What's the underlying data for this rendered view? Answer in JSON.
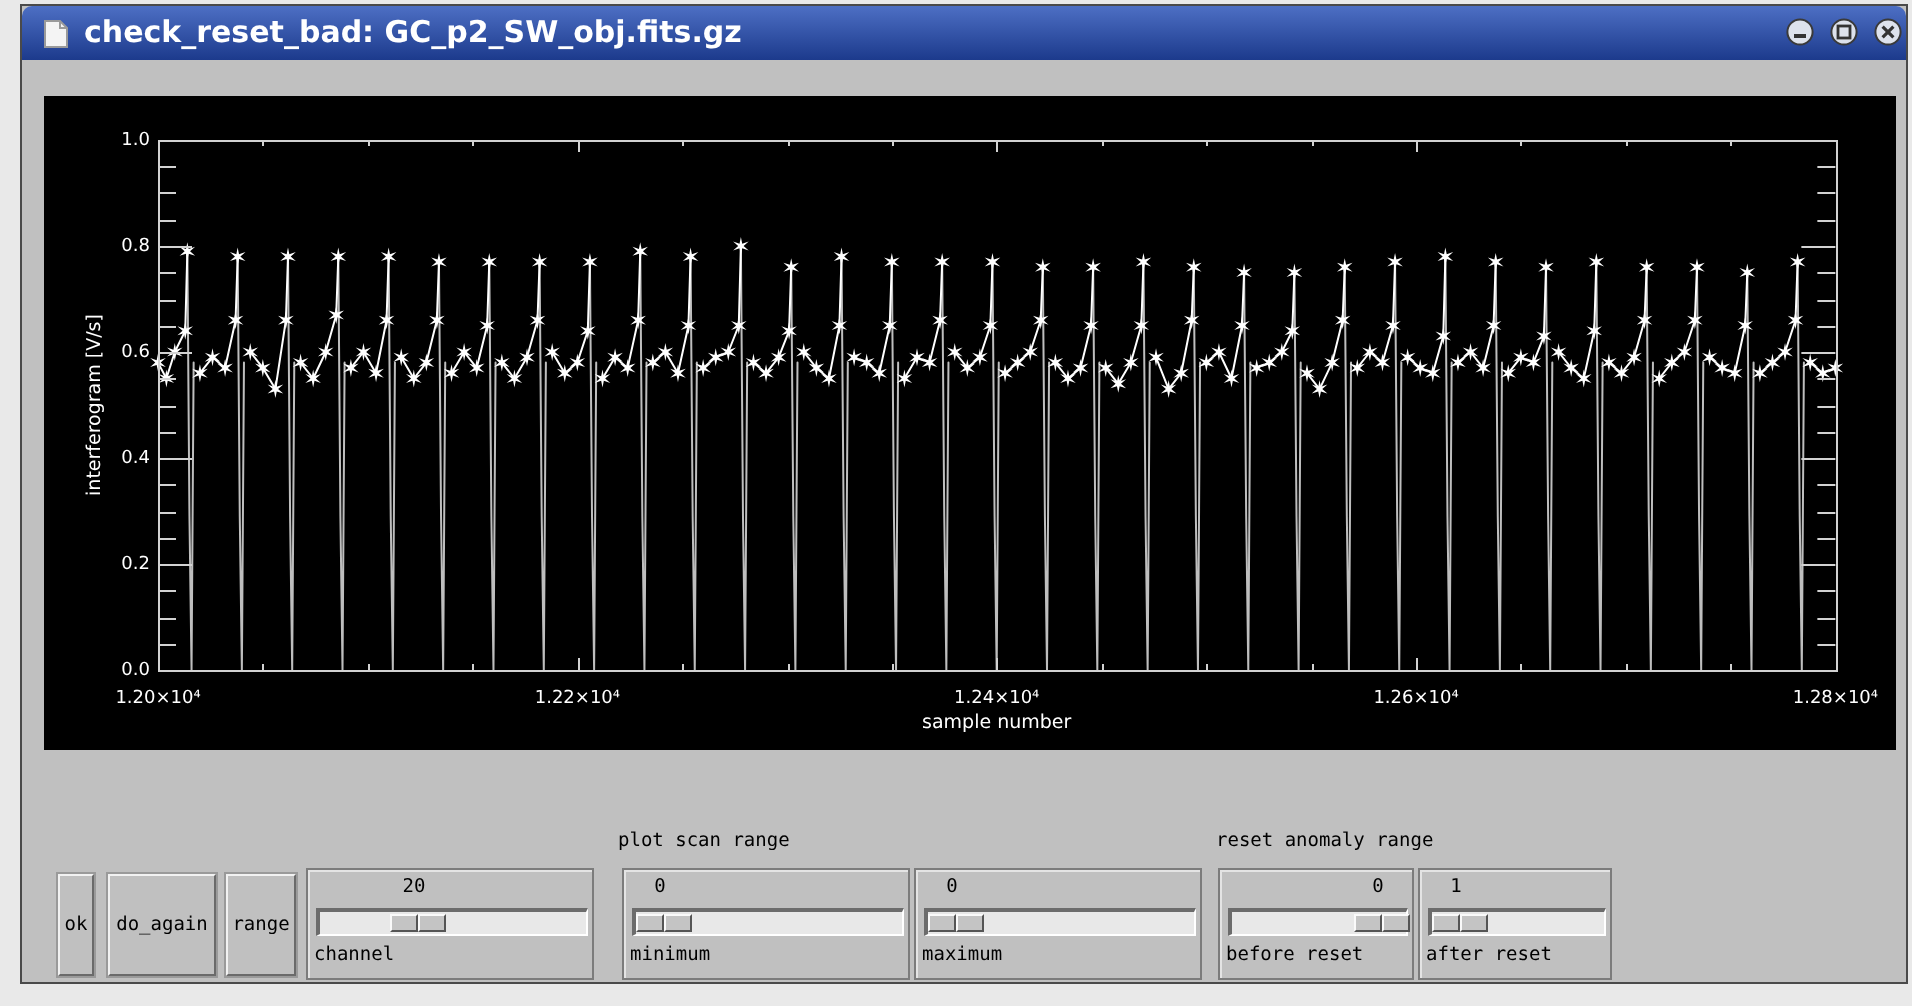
{
  "chart_data": [
    {
      "type": "line",
      "title": "check_reset_bad: GC_p2_SW_obj.fits.gz",
      "xlabel": "sample number",
      "ylabel": "interferogram [V/s]",
      "xlim": [
        12000,
        12800
      ],
      "ylim": [
        0,
        1
      ],
      "xticks": [
        {
          "value": 12000,
          "label": "1.20×10⁴"
        },
        {
          "value": 12050,
          "label": null
        },
        {
          "value": 12100,
          "label": null
        },
        {
          "value": 12150,
          "label": null
        },
        {
          "value": 12200,
          "label": "1.22×10⁴"
        },
        {
          "value": 12250,
          "label": null
        },
        {
          "value": 12300,
          "label": null
        },
        {
          "value": 12350,
          "label": null
        },
        {
          "value": 12400,
          "label": "1.24×10⁴"
        },
        {
          "value": 12450,
          "label": null
        },
        {
          "value": 12500,
          "label": null
        },
        {
          "value": 12550,
          "label": null
        },
        {
          "value": 12600,
          "label": "1.26×10⁴"
        },
        {
          "value": 12650,
          "label": null
        },
        {
          "value": 12700,
          "label": null
        },
        {
          "value": 12750,
          "label": null
        },
        {
          "value": 12800,
          "label": "1.28×10⁴"
        }
      ],
      "yticks": [
        {
          "value": 0,
          "label": "0.0"
        },
        {
          "value": 0.05,
          "label": null
        },
        {
          "value": 0.1,
          "label": null
        },
        {
          "value": 0.15,
          "label": null
        },
        0.2,
        {
          "value": 0.25,
          "label": null
        },
        {
          "value": 0.3,
          "label": null
        },
        {
          "value": 0.35,
          "label": null
        },
        0.4,
        {
          "value": 0.45,
          "label": null
        },
        {
          "value": 0.5,
          "label": null
        },
        {
          "value": 0.55,
          "label": null
        },
        0.6,
        {
          "value": 0.65,
          "label": null
        },
        {
          "value": 0.7,
          "label": null
        },
        {
          "value": 0.75,
          "label": null
        },
        0.8,
        {
          "value": 0.85,
          "label": null
        },
        {
          "value": 0.9,
          "label": null
        },
        {
          "value": 0.95,
          "label": null
        },
        {
          "value": 1,
          "label": "1.0"
        }
      ],
      "series": [
        {
          "color": "#ffffff",
          "marker": "cross",
          "x": [
            12000,
            12004,
            12008,
            12013,
            12014,
            12015,
            12020,
            12026,
            12032,
            12037,
            12038,
            12039,
            12044,
            12050,
            12056,
            12061,
            12062,
            12063,
            12068,
            12074,
            12080,
            12085,
            12086,
            12087,
            12092,
            12098,
            12104,
            12109,
            12110,
            12111,
            12116,
            12122,
            12128,
            12133,
            12134,
            12135,
            12140,
            12146,
            12152,
            12157,
            12158,
            12159,
            12164,
            12170,
            12176,
            12181,
            12182,
            12183,
            12188,
            12194,
            12200,
            12205,
            12206,
            12207,
            12212,
            12218,
            12224,
            12229,
            12230,
            12231,
            12236,
            12242,
            12248,
            12253,
            12254,
            12255,
            12260,
            12266,
            12272,
            12277,
            12278,
            12279,
            12284,
            12290,
            12296,
            12301,
            12302,
            12303,
            12308,
            12314,
            12320,
            12325,
            12326,
            12327,
            12332,
            12338,
            12344,
            12349,
            12350,
            12351,
            12356,
            12362,
            12368,
            12373,
            12374,
            12375,
            12380,
            12386,
            12392,
            12397,
            12398,
            12399,
            12404,
            12410,
            12416,
            12421,
            12422,
            12423,
            12428,
            12434,
            12440,
            12445,
            12446,
            12447,
            12452,
            12458,
            12464,
            12469,
            12470,
            12471,
            12476,
            12482,
            12488,
            12493,
            12494,
            12495,
            12500,
            12506,
            12512,
            12517,
            12518,
            12519,
            12524,
            12530,
            12536,
            12541,
            12542,
            12543,
            12548,
            12554,
            12560,
            12565,
            12566,
            12567,
            12572,
            12578,
            12584,
            12589,
            12590,
            12591,
            12596,
            12602,
            12608,
            12613,
            12614,
            12615,
            12620,
            12626,
            12632,
            12637,
            12638,
            12639,
            12644,
            12650,
            12656,
            12661,
            12662,
            12663,
            12668,
            12674,
            12680,
            12685,
            12686,
            12687,
            12692,
            12698,
            12704,
            12709,
            12710,
            12711,
            12716,
            12722,
            12728,
            12733,
            12734,
            12735,
            12740,
            12746,
            12752,
            12757,
            12758,
            12759,
            12764,
            12770,
            12776,
            12781,
            12782,
            12783,
            12788,
            12794,
            12800
          ],
          "values": [
            0.58,
            0.55,
            0.6,
            0.64,
            0.79,
            null,
            0.56,
            0.59,
            0.57,
            0.66,
            0.78,
            null,
            0.6,
            0.57,
            0.53,
            0.66,
            0.78,
            null,
            0.58,
            0.55,
            0.6,
            0.67,
            0.78,
            null,
            0.57,
            0.6,
            0.56,
            0.66,
            0.78,
            null,
            0.59,
            0.55,
            0.58,
            0.66,
            0.77,
            null,
            0.56,
            0.6,
            0.57,
            0.65,
            0.77,
            null,
            0.58,
            0.55,
            0.59,
            0.66,
            0.77,
            null,
            0.6,
            0.56,
            0.58,
            0.64,
            0.77,
            null,
            0.55,
            0.59,
            0.57,
            0.66,
            0.79,
            null,
            0.58,
            0.6,
            0.56,
            0.65,
            0.78,
            null,
            0.57,
            0.59,
            0.6,
            0.65,
            0.8,
            null,
            0.58,
            0.56,
            0.59,
            0.64,
            0.76,
            null,
            0.6,
            0.57,
            0.55,
            0.65,
            0.78,
            null,
            0.59,
            0.58,
            0.56,
            0.65,
            0.77,
            null,
            0.55,
            0.59,
            0.58,
            0.66,
            0.77,
            null,
            0.6,
            0.57,
            0.59,
            0.65,
            0.77,
            null,
            0.56,
            0.58,
            0.6,
            0.66,
            0.76,
            null,
            0.58,
            0.55,
            0.57,
            0.65,
            0.76,
            null,
            0.57,
            0.54,
            0.58,
            0.65,
            0.77,
            null,
            0.59,
            0.53,
            0.56,
            0.66,
            0.76,
            null,
            0.58,
            0.6,
            0.55,
            0.65,
            0.75,
            null,
            0.57,
            0.58,
            0.6,
            0.64,
            0.75,
            null,
            0.56,
            0.53,
            0.58,
            0.66,
            0.76,
            null,
            0.57,
            0.6,
            0.58,
            0.65,
            0.77,
            null,
            0.59,
            0.57,
            0.56,
            0.63,
            0.78,
            null,
            0.58,
            0.6,
            0.57,
            0.65,
            0.77,
            null,
            0.56,
            0.59,
            0.58,
            0.63,
            0.76,
            null,
            0.6,
            0.57,
            0.55,
            0.64,
            0.77,
            null,
            0.58,
            0.56,
            0.59,
            0.66,
            0.76,
            null,
            0.55,
            0.58,
            0.6,
            0.66,
            0.76,
            null,
            0.59,
            0.57,
            0.56,
            0.65,
            0.75,
            null,
            0.56,
            0.58,
            0.6,
            0.66,
            0.77,
            null,
            0.58,
            0.56,
            0.57
          ]
        },
        {
          "color": "#bebebe",
          "marker": "none",
          "x": [
            12014,
            12015,
            12016,
            12017,
            12018,
            12038,
            12039,
            12040,
            12041,
            12042,
            12062,
            12063,
            12064,
            12065,
            12066,
            12086,
            12087,
            12088,
            12089,
            12090,
            12110,
            12111,
            12112,
            12113,
            12114,
            12134,
            12135,
            12136,
            12137,
            12138,
            12158,
            12159,
            12160,
            12161,
            12162,
            12182,
            12183,
            12184,
            12185,
            12186,
            12206,
            12207,
            12208,
            12209,
            12210,
            12230,
            12231,
            12232,
            12233,
            12234,
            12254,
            12255,
            12256,
            12257,
            12258,
            12278,
            12279,
            12280,
            12281,
            12282,
            12302,
            12303,
            12304,
            12305,
            12306,
            12326,
            12327,
            12328,
            12329,
            12330,
            12350,
            12351,
            12352,
            12353,
            12354,
            12374,
            12375,
            12376,
            12377,
            12378,
            12398,
            12399,
            12400,
            12401,
            12402,
            12422,
            12423,
            12424,
            12425,
            12426,
            12446,
            12447,
            12448,
            12449,
            12450,
            12470,
            12471,
            12472,
            12473,
            12474,
            12494,
            12495,
            12496,
            12497,
            12498,
            12518,
            12519,
            12520,
            12521,
            12522,
            12542,
            12543,
            12544,
            12545,
            12546,
            12566,
            12567,
            12568,
            12569,
            12570,
            12590,
            12591,
            12592,
            12593,
            12594,
            12614,
            12615,
            12616,
            12617,
            12618,
            12638,
            12639,
            12640,
            12641,
            12642,
            12662,
            12663,
            12664,
            12665,
            12666,
            12686,
            12687,
            12688,
            12689,
            12690,
            12710,
            12711,
            12712,
            12713,
            12714,
            12734,
            12735,
            12736,
            12737,
            12738,
            12758,
            12759,
            12760,
            12761,
            12762,
            12782,
            12783,
            12784,
            12785
          ],
          "values": [
            0.79,
            0.29,
            0,
            0.58,
            null,
            0.78,
            0.29,
            0,
            0.58,
            null,
            0.78,
            0.29,
            0,
            0.58,
            null,
            0.78,
            0.29,
            0,
            0.58,
            null,
            0.78,
            0.29,
            0,
            0.58,
            null,
            0.77,
            0.29,
            0,
            0.58,
            null,
            0.77,
            0.29,
            0,
            0.58,
            null,
            0.77,
            0.29,
            0,
            0.58,
            null,
            0.77,
            0.29,
            0,
            0.58,
            null,
            0.79,
            0.29,
            0,
            0.58,
            null,
            0.78,
            0.29,
            0,
            0.58,
            null,
            0.8,
            0.29,
            0,
            0.58,
            null,
            0.76,
            0.29,
            0,
            0.58,
            null,
            0.78,
            0.29,
            0,
            0.58,
            null,
            0.77,
            0.29,
            0,
            0.58,
            null,
            0.77,
            0.29,
            0,
            0.58,
            null,
            0.77,
            0.29,
            0,
            0.58,
            null,
            0.76,
            0.29,
            0,
            0.58,
            null,
            0.76,
            0.29,
            0,
            0.58,
            null,
            0.77,
            0.29,
            0,
            0.58,
            null,
            0.76,
            0.29,
            0,
            0.58,
            null,
            0.75,
            0.29,
            0,
            0.58,
            null,
            0.75,
            0.29,
            0,
            0.58,
            null,
            0.76,
            0.29,
            0,
            0.58,
            null,
            0.77,
            0.29,
            0,
            0.58,
            null,
            0.78,
            0.29,
            0,
            0.58,
            null,
            0.77,
            0.29,
            0,
            0.58,
            null,
            0.76,
            0.29,
            0,
            0.58,
            null,
            0.77,
            0.29,
            0,
            0.58,
            null,
            0.76,
            0.29,
            0,
            0.58,
            null,
            0.76,
            0.29,
            0,
            0.58,
            null,
            0.75,
            0.29,
            0,
            0.58,
            null,
            0.77,
            0.29,
            0,
            0.58
          ]
        }
      ]
    },
    {
      "type": "other",
      "annotations": [
        "plot scan range",
        "reset anomaly range",
        "ok",
        "do_again",
        "range",
        "20",
        "channel",
        "0",
        "minimum",
        "0",
        "maximum",
        "0",
        "before reset",
        "1",
        "after reset"
      ]
    }
  ]
}
